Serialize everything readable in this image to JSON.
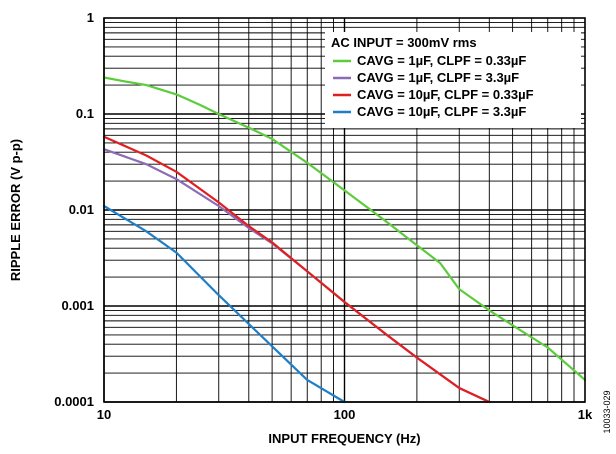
{
  "figure_id": "10033-029",
  "chart_data": {
    "type": "line",
    "title": "",
    "xlabel": "INPUT FREQUENCY (Hz)",
    "ylabel": "RIPPLE ERROR (V p-p)",
    "xscale": "log",
    "yscale": "log",
    "xlim": [
      10,
      1000
    ],
    "ylim": [
      0.0001,
      1
    ],
    "grid": true,
    "x_ticks": [
      {
        "value": 10,
        "label": "10"
      },
      {
        "value": 100,
        "label": "100"
      },
      {
        "value": 1000,
        "label": "1k"
      }
    ],
    "y_ticks": [
      {
        "value": 1,
        "label": "1"
      },
      {
        "value": 0.1,
        "label": "0.1"
      },
      {
        "value": 0.01,
        "label": "0.01"
      },
      {
        "value": 0.001,
        "label": "0.001"
      },
      {
        "value": 0.0001,
        "label": "0.0001"
      }
    ],
    "legend": {
      "position": "top-right",
      "title": "AC INPUT = 300mV rms"
    },
    "series": [
      {
        "name": "CAVG = 1µF, CLPF = 0.33µF",
        "color": "#5ccc3c",
        "x": [
          10,
          12,
          15,
          20,
          25,
          30,
          40,
          50,
          70,
          100,
          150,
          200,
          250,
          300,
          400,
          500,
          700,
          1000
        ],
        "y": [
          0.24,
          0.22,
          0.2,
          0.16,
          0.125,
          0.1,
          0.072,
          0.055,
          0.031,
          0.016,
          0.0075,
          0.0043,
          0.0028,
          0.0015,
          0.0009,
          0.00063,
          0.00037,
          0.00017
        ]
      },
      {
        "name": "CAVG = 1µF, CLPF = 3.3µF",
        "color": "#8b6bb5",
        "x": [
          10,
          15,
          20,
          30,
          40,
          50,
          70,
          100,
          150,
          200,
          300,
          400
        ],
        "y": [
          0.043,
          0.03,
          0.021,
          0.011,
          0.0065,
          0.0045,
          0.0023,
          0.0011,
          0.0005,
          0.00029,
          0.00014,
          0.0001
        ]
      },
      {
        "name": "CAVG = 10µF, CLPF = 0.33µF",
        "color": "#e02020",
        "x": [
          10,
          15,
          20,
          30,
          40,
          50,
          70,
          100,
          150,
          200,
          300,
          400
        ],
        "y": [
          0.058,
          0.037,
          0.025,
          0.012,
          0.0068,
          0.0046,
          0.0023,
          0.0011,
          0.0005,
          0.00029,
          0.00014,
          0.0001
        ]
      },
      {
        "name": "CAVG = 10µF, CLPF = 3.3µF",
        "color": "#1e7fc8",
        "x": [
          10,
          15,
          20,
          30,
          40,
          50,
          70,
          100
        ],
        "y": [
          0.011,
          0.006,
          0.0036,
          0.0013,
          0.00065,
          0.00038,
          0.00017,
          0.0001
        ]
      }
    ]
  }
}
